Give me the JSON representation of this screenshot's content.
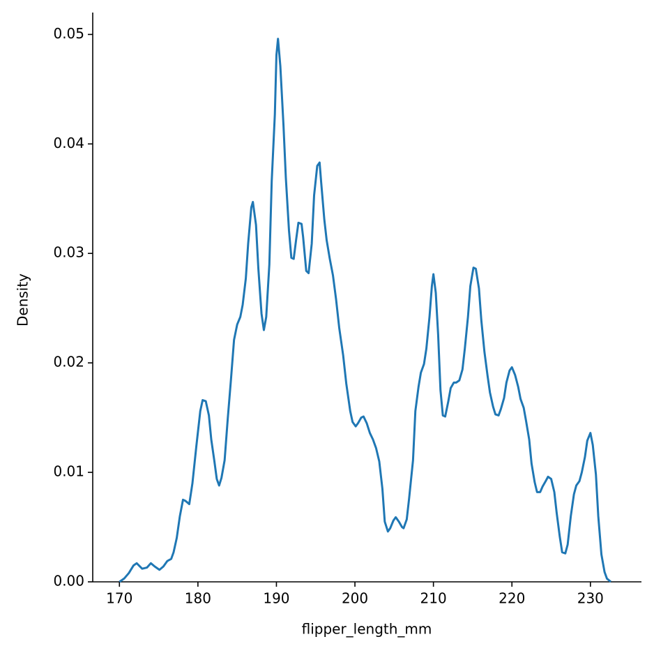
{
  "chart_data": {
    "type": "line",
    "x_label": "flipper_length_mm",
    "y_label": "Density",
    "xlim": [
      166.6,
      236.5
    ],
    "ylim": [
      0,
      0.052
    ],
    "xticks": [
      170,
      180,
      190,
      200,
      210,
      220,
      230
    ],
    "yticks": [
      {
        "value": 0,
        "label": "0.00"
      },
      0.01,
      0.02,
      0.03,
      0.04,
      0.05
    ],
    "grid": false,
    "series": [
      {
        "color": "#1f77b4",
        "x": [
          170,
          170.6,
          171.2,
          171.8,
          172.2,
          172.9,
          173.5,
          174,
          174.5,
          175.1,
          175.6,
          176.1,
          176.6,
          176.9,
          177.3,
          177.7,
          178.1,
          178.4,
          178.9,
          179.3,
          179.8,
          180.3,
          180.6,
          181,
          181.4,
          181.7,
          182.1,
          182.4,
          182.7,
          183,
          183.4,
          183.8,
          184.2,
          184.6,
          185,
          185.4,
          185.7,
          186.1,
          186.4,
          186.8,
          187,
          187.4,
          187.7,
          188.1,
          188.4,
          188.7,
          189.1,
          189.4,
          189.8,
          190,
          190.2,
          190.5,
          190.9,
          191.2,
          191.6,
          191.9,
          192.2,
          192.5,
          192.8,
          193.2,
          193.4,
          193.8,
          194.1,
          194.5,
          194.8,
          195.2,
          195.5,
          195.7,
          196.1,
          196.4,
          196.8,
          197.2,
          197.6,
          198,
          198.5,
          198.9,
          199.4,
          199.7,
          200.1,
          200.4,
          200.8,
          201.1,
          201.5,
          201.9,
          202.3,
          202.7,
          203.1,
          203.5,
          203.8,
          204.2,
          204.5,
          204.9,
          205.2,
          205.6,
          206,
          206.2,
          206.6,
          206.9,
          207.4,
          207.7,
          208.1,
          208.4,
          208.8,
          209.1,
          209.5,
          209.8,
          210,
          210.3,
          210.6,
          210.9,
          211.2,
          211.5,
          211.9,
          212.2,
          212.6,
          212.9,
          213.3,
          213.7,
          214,
          214.4,
          214.7,
          215.1,
          215.4,
          215.8,
          216.1,
          216.5,
          216.9,
          217.2,
          217.6,
          217.9,
          218.3,
          218.6,
          219,
          219.3,
          219.7,
          220,
          220.4,
          220.8,
          221.1,
          221.5,
          221.8,
          222.2,
          222.5,
          222.9,
          223.2,
          223.6,
          223.9,
          224.3,
          224.6,
          225,
          225.4,
          225.7,
          226.1,
          226.4,
          226.8,
          227.1,
          227.5,
          227.9,
          228.2,
          228.6,
          228.9,
          229.3,
          229.6,
          230,
          230.3,
          230.7,
          231,
          231.4,
          231.8,
          232.1,
          232.6
        ],
        "values": [
          0,
          0.0003,
          0.0008,
          0.0015,
          0.0017,
          0.0012,
          0.0013,
          0.0017,
          0.0014,
          0.0011,
          0.0014,
          0.0019,
          0.0021,
          0.0027,
          0.004,
          0.006,
          0.0075,
          0.0074,
          0.0071,
          0.009,
          0.0124,
          0.0156,
          0.0166,
          0.0165,
          0.0152,
          0.013,
          0.011,
          0.0094,
          0.0088,
          0.0095,
          0.0111,
          0.0149,
          0.0184,
          0.0221,
          0.0235,
          0.0242,
          0.0253,
          0.0277,
          0.0309,
          0.0342,
          0.0347,
          0.0326,
          0.0286,
          0.0245,
          0.023,
          0.0242,
          0.029,
          0.0366,
          0.0427,
          0.0481,
          0.0496,
          0.0471,
          0.0417,
          0.0369,
          0.0321,
          0.0296,
          0.0295,
          0.0312,
          0.0328,
          0.0327,
          0.0315,
          0.0284,
          0.0282,
          0.0309,
          0.0353,
          0.038,
          0.0383,
          0.0365,
          0.0331,
          0.0312,
          0.0295,
          0.028,
          0.0258,
          0.0232,
          0.0207,
          0.0181,
          0.0156,
          0.0146,
          0.0142,
          0.0145,
          0.015,
          0.0151,
          0.0145,
          0.0136,
          0.013,
          0.0122,
          0.011,
          0.0085,
          0.0055,
          0.0046,
          0.0049,
          0.0056,
          0.0059,
          0.0055,
          0.005,
          0.0049,
          0.0057,
          0.0076,
          0.0111,
          0.0156,
          0.0178,
          0.0191,
          0.0199,
          0.0213,
          0.0242,
          0.027,
          0.0281,
          0.0264,
          0.0226,
          0.0175,
          0.0152,
          0.0151,
          0.0165,
          0.0177,
          0.0182,
          0.0182,
          0.0184,
          0.0194,
          0.0213,
          0.0242,
          0.027,
          0.0287,
          0.0286,
          0.0268,
          0.0239,
          0.021,
          0.0188,
          0.0173,
          0.016,
          0.0153,
          0.0152,
          0.0158,
          0.0168,
          0.0182,
          0.0193,
          0.0196,
          0.0189,
          0.0178,
          0.0167,
          0.0159,
          0.0147,
          0.013,
          0.0108,
          0.0091,
          0.0082,
          0.0082,
          0.0087,
          0.0092,
          0.0096,
          0.0094,
          0.0082,
          0.0063,
          0.0041,
          0.0027,
          0.0026,
          0.0034,
          0.006,
          0.008,
          0.0088,
          0.0092,
          0.01,
          0.0114,
          0.0129,
          0.0136,
          0.0125,
          0.0098,
          0.006,
          0.0025,
          0.0009,
          0.0003,
          0
        ]
      }
    ]
  }
}
